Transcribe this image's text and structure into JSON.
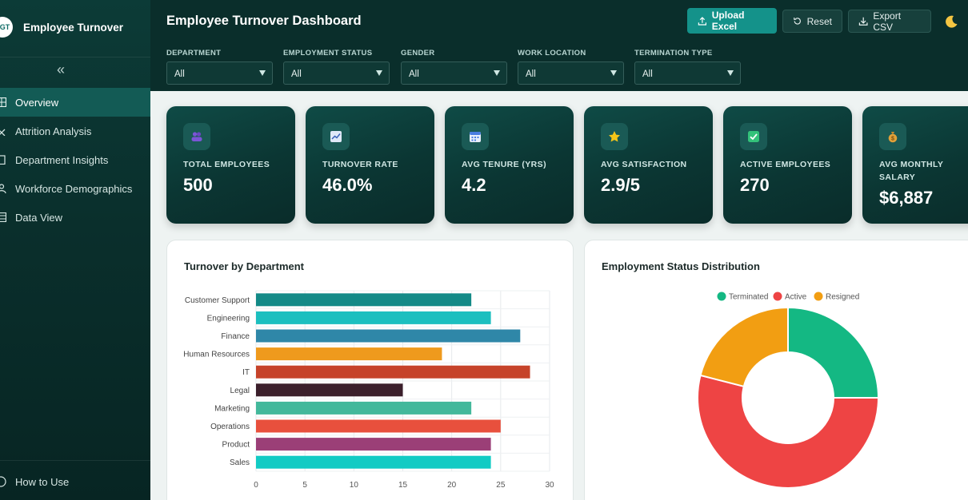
{
  "app": {
    "brand_logo_text": "GT",
    "brand_name": "Employee Turnover"
  },
  "sidebar": {
    "items": [
      {
        "label": "Overview",
        "icon": "grid-icon",
        "active": true
      },
      {
        "label": "Attrition Analysis",
        "icon": "close-icon",
        "active": false
      },
      {
        "label": "Department Insights",
        "icon": "building-icon",
        "active": false
      },
      {
        "label": "Workforce Demographics",
        "icon": "users-icon",
        "active": false
      },
      {
        "label": "Data View",
        "icon": "table-icon",
        "active": false
      }
    ],
    "bottom_label": "How to Use"
  },
  "header": {
    "title": "Employee Turnover Dashboard",
    "upload_label": "Upload Excel",
    "reset_label": "Reset",
    "export_label": "Export CSV"
  },
  "filters": [
    {
      "label": "DEPARTMENT",
      "value": "All"
    },
    {
      "label": "EMPLOYMENT STATUS",
      "value": "All"
    },
    {
      "label": "GENDER",
      "value": "All"
    },
    {
      "label": "WORK LOCATION",
      "value": "All"
    },
    {
      "label": "TERMINATION TYPE",
      "value": "All"
    }
  ],
  "kpis": [
    {
      "label": "TOTAL EMPLOYEES",
      "value": "500",
      "icon": "people-icon"
    },
    {
      "label": "TURNOVER RATE",
      "value": "46.0%",
      "icon": "trend-chart-icon"
    },
    {
      "label": "AVG TENURE (YRS)",
      "value": "4.2",
      "icon": "calendar-icon"
    },
    {
      "label": "AVG SATISFACTION",
      "value": "2.9/5",
      "icon": "star-icon"
    },
    {
      "label": "ACTIVE EMPLOYEES",
      "value": "270",
      "icon": "checkbox-icon"
    },
    {
      "label": "AVG MONTHLY SALARY",
      "value": "$6,887",
      "icon": "money-bag-icon"
    }
  ],
  "panels": {
    "department_title": "Turnover by Department",
    "status_title": "Employment Status Distribution"
  },
  "chart_data": [
    {
      "type": "bar",
      "orientation": "horizontal",
      "title": "Turnover by Department",
      "categories": [
        "Customer Support",
        "Engineering",
        "Finance",
        "Human Resources",
        "IT",
        "Legal",
        "Marketing",
        "Operations",
        "Product",
        "Sales"
      ],
      "values": [
        22,
        24,
        27,
        19,
        28,
        15,
        22,
        25,
        24,
        24
      ],
      "colors": [
        "#138a87",
        "#1cbfbf",
        "#2f87a8",
        "#ef9a1d",
        "#c6432a",
        "#3b1f2b",
        "#43b89b",
        "#e8503d",
        "#9b3f77",
        "#12cbc4"
      ],
      "xlim": [
        0,
        30
      ],
      "xticks": [
        0,
        5,
        10,
        15,
        20,
        25,
        30
      ],
      "grid": true
    },
    {
      "type": "pie",
      "variant": "doughnut",
      "title": "Employment Status Distribution",
      "labels": [
        "Terminated",
        "Active",
        "Resigned"
      ],
      "values": [
        0.25,
        0.54,
        0.21
      ],
      "colors": [
        "#14b883",
        "#ee4444",
        "#f29e12"
      ],
      "legend_position": "top"
    }
  ]
}
